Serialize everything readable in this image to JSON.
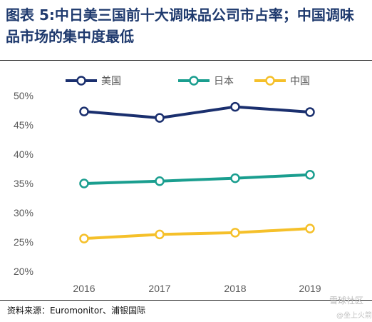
{
  "title": {
    "prefix": "图表 5",
    "text": ":中日美三国前十大调味品公司市占率；中国调味品市场的集中度最低"
  },
  "source": "资料来源：Euromonitor、浦银国际",
  "watermark": {
    "line1": "雪球社区",
    "line2": "@坐上火箭"
  },
  "chart_data": {
    "type": "line",
    "x": [
      "2016",
      "2017",
      "2018",
      "2019"
    ],
    "ylim": [
      0.2,
      0.5
    ],
    "yticks": [
      0.2,
      0.25,
      0.3,
      0.35,
      0.4,
      0.45,
      0.5
    ],
    "ytick_labels": [
      "20%",
      "25%",
      "30%",
      "35%",
      "40%",
      "45%",
      "50%"
    ],
    "grid": false,
    "legend": "top",
    "series": [
      {
        "name": "美国",
        "color": "#1a2f6e",
        "values": [
          0.473,
          0.462,
          0.481,
          0.472
        ]
      },
      {
        "name": "日本",
        "color": "#1a9e8f",
        "values": [
          0.35,
          0.354,
          0.359,
          0.365
        ]
      },
      {
        "name": "中国",
        "color": "#f5c02a",
        "values": [
          0.256,
          0.263,
          0.266,
          0.273
        ]
      }
    ]
  }
}
